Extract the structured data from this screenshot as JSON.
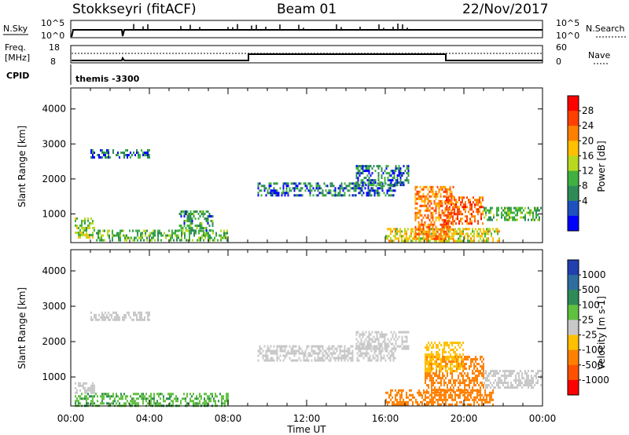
{
  "header": {
    "station": "Stokkseyri (fitACF)",
    "beam": "Beam 01",
    "date": "22/Nov/2017"
  },
  "status_panels": {
    "nsky_label": "N.Sky",
    "nsky_ticks": [
      "10^5",
      "10^0"
    ],
    "nsearch_label": "N.Search",
    "nsearch_ticks": [
      "10^5",
      "10^0"
    ],
    "freq_label_1": "Freq.",
    "freq_label_2": "[MHz]",
    "freq_ticks": [
      "18",
      "8"
    ],
    "nave_label": "Nave",
    "nave_ticks": [
      "60",
      "0"
    ],
    "cpid_label": "CPID",
    "cpid_value": "themis -3300"
  },
  "axes": {
    "xlabel": "Time UT",
    "x_ticks": [
      "00:00",
      "04:00",
      "08:00",
      "12:00",
      "16:00",
      "20:00",
      "00:00"
    ],
    "ylabel": "Slant Range [km]",
    "y_ticks": [
      "4000",
      "3000",
      "2000",
      "1000"
    ]
  },
  "power_colorbar": {
    "label": "Power [dB]",
    "ticks": [
      "28",
      "24",
      "20",
      "16",
      "12",
      "8",
      "4"
    ],
    "colors": [
      "#ff0000",
      "#ff4000",
      "#ff8000",
      "#ffc000",
      "#b8d820",
      "#40b040",
      "#2e8b57",
      "#1e50c0",
      "#0000ff"
    ]
  },
  "velocity_colorbar": {
    "label": "Velocity [m s-1]",
    "ticks": [
      "1000",
      "500",
      "100",
      "25",
      "-25",
      "-100",
      "-500",
      "-1000"
    ],
    "colors": [
      "#2040b0",
      "#2e6e9e",
      "#2e8b57",
      "#60c040",
      "#c8c8c8",
      "#ffc000",
      "#ff8000",
      "#ff5000",
      "#ff0000"
    ]
  },
  "chart_data": [
    {
      "type": "heatmap",
      "title": "Power",
      "x_range_hours": [
        0,
        24
      ],
      "y_range_km": [
        180,
        4600
      ],
      "regions": [
        {
          "t0": 0.2,
          "t1": 1.2,
          "r0": 300,
          "r1": 900,
          "value": 12
        },
        {
          "t0": 1.0,
          "t1": 4.0,
          "r0": 2600,
          "r1": 2850,
          "value": 6
        },
        {
          "t0": 1.2,
          "t1": 8.0,
          "r0": 250,
          "r1": 550,
          "value": 10
        },
        {
          "t0": 5.5,
          "t1": 7.2,
          "r0": 500,
          "r1": 1100,
          "value": 8
        },
        {
          "t0": 9.5,
          "t1": 16.5,
          "r0": 1500,
          "r1": 1900,
          "value": 6
        },
        {
          "t0": 14.5,
          "t1": 17.2,
          "r0": 1800,
          "r1": 2400,
          "value": 6
        },
        {
          "t0": 16.0,
          "t1": 21.8,
          "r0": 250,
          "r1": 600,
          "value": 16
        },
        {
          "t0": 17.5,
          "t1": 19.5,
          "r0": 300,
          "r1": 1800,
          "value": 22
        },
        {
          "t0": 19.0,
          "t1": 21.0,
          "r0": 700,
          "r1": 1500,
          "value": 24
        },
        {
          "t0": 21.0,
          "t1": 23.9,
          "r0": 800,
          "r1": 1200,
          "value": 10
        }
      ]
    },
    {
      "type": "heatmap",
      "title": "Velocity",
      "x_range_hours": [
        0,
        24
      ],
      "y_range_km": [
        180,
        4600
      ],
      "regions": [
        {
          "t0": 0.2,
          "t1": 1.2,
          "r0": 550,
          "r1": 850,
          "value": 0
        },
        {
          "t0": 0.2,
          "t1": 8.0,
          "r0": 200,
          "r1": 550,
          "value": 80
        },
        {
          "t0": 1.0,
          "t1": 4.0,
          "r0": 2600,
          "r1": 2850,
          "value": 0
        },
        {
          "t0": 9.5,
          "t1": 16.5,
          "r0": 1500,
          "r1": 1900,
          "value": 0
        },
        {
          "t0": 14.5,
          "t1": 17.2,
          "r0": 1800,
          "r1": 2300,
          "value": 0
        },
        {
          "t0": 16.0,
          "t1": 21.5,
          "r0": 250,
          "r1": 650,
          "value": -200
        },
        {
          "t0": 18.0,
          "t1": 21.0,
          "r0": 600,
          "r1": 1600,
          "value": -200
        },
        {
          "t0": 18.0,
          "t1": 20.0,
          "r0": 1200,
          "r1": 2000,
          "value": -60
        },
        {
          "t0": 21.0,
          "t1": 23.9,
          "r0": 700,
          "r1": 1200,
          "value": 0
        }
      ]
    }
  ]
}
